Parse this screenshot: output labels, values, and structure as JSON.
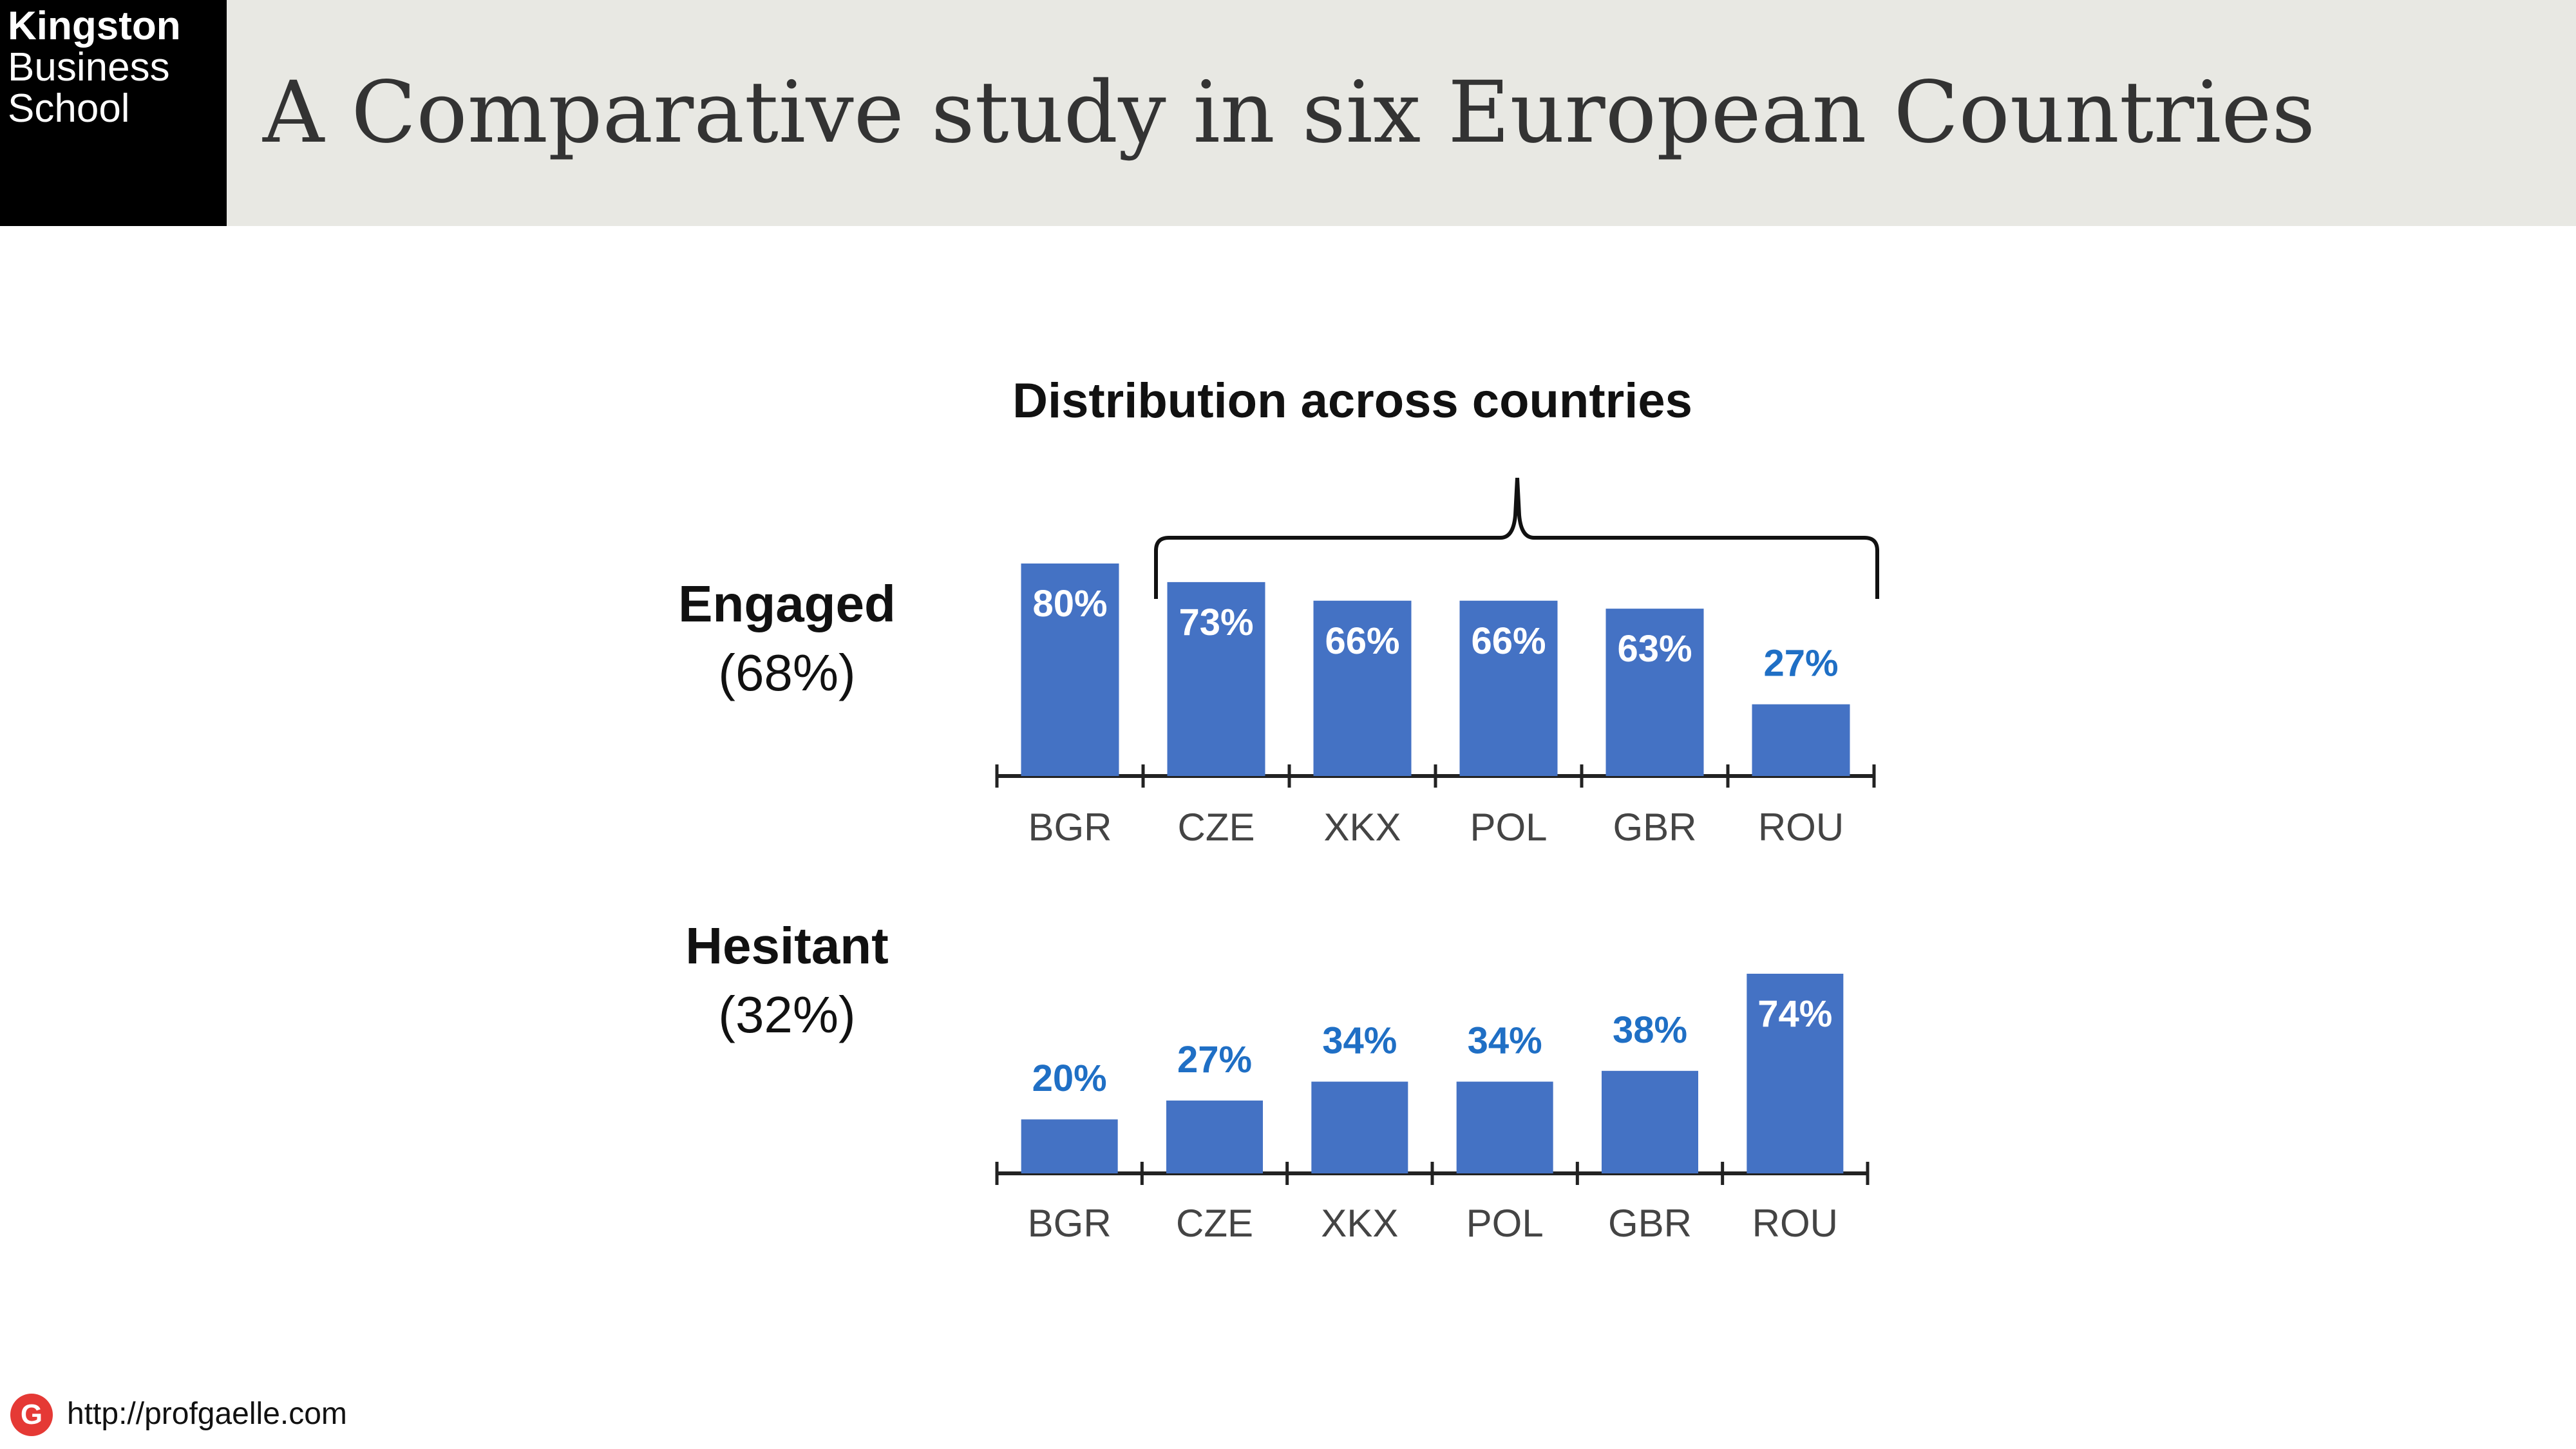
{
  "header": {
    "logo_lines": [
      "Kingston",
      "Business",
      "School"
    ],
    "title": "A Comparative study in six European Countries"
  },
  "footer": {
    "icon_letter": "G",
    "url": "http://profgaelle.com"
  },
  "colors": {
    "bar": "#4472c4",
    "label_outside": "#1f6fc5",
    "label_inside": "#ffffff",
    "axis": "#222222"
  },
  "chart_data": {
    "type": "bar",
    "title": "Distribution across countries",
    "charts": [
      {
        "group_label": "Engaged",
        "group_share": "(68%)",
        "categories": [
          "BGR",
          "CZE",
          "XKX",
          "POL",
          "GBR",
          "ROU"
        ],
        "values": [
          80,
          73,
          66,
          66,
          63,
          27
        ],
        "labels": [
          "80%",
          "73%",
          "66%",
          "66%",
          "63%",
          "27%"
        ],
        "ylim": [
          0,
          80
        ],
        "annotation": "bracket over CZE–ROU"
      },
      {
        "group_label": "Hesitant",
        "group_share": "(32%)",
        "categories": [
          "BGR",
          "CZE",
          "XKX",
          "POL",
          "GBR",
          "ROU"
        ],
        "values": [
          20,
          27,
          34,
          34,
          38,
          74
        ],
        "labels": [
          "20%",
          "27%",
          "34%",
          "34%",
          "38%",
          "74%"
        ],
        "ylim": [
          0,
          74
        ]
      }
    ]
  }
}
